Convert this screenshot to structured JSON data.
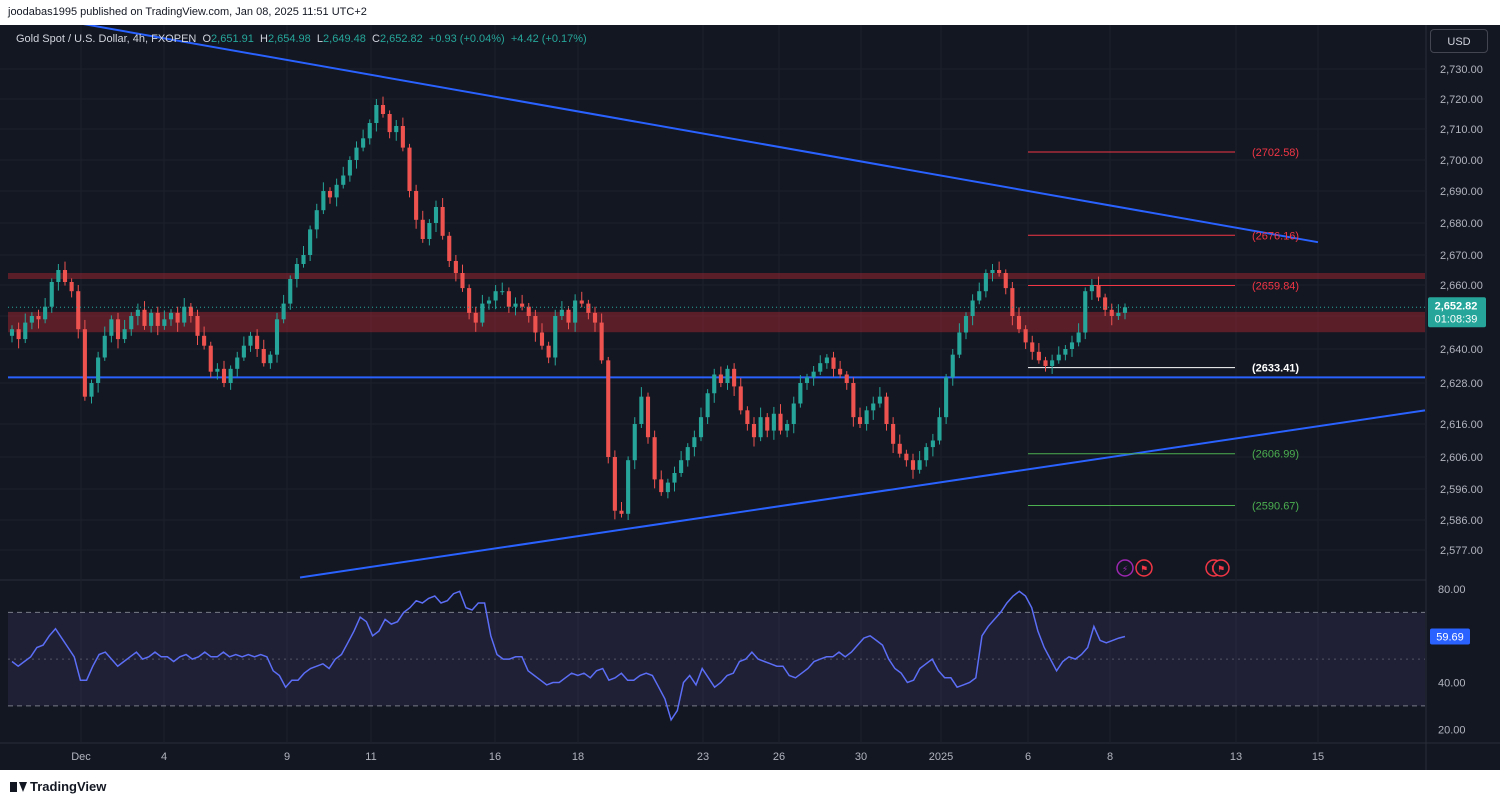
{
  "header": {
    "published": "joodabas1995 published on TradingView.com, Jan 08, 2025 11:51 UTC+2"
  },
  "symbol_line": {
    "name": "Gold Spot / U.S. Dollar, 4h, FXOPEN",
    "o_label": "O",
    "o": "2,651.91",
    "h_label": "H",
    "h": "2,654.98",
    "l_label": "L",
    "l": "2,649.48",
    "c_label": "C",
    "c": "2,652.82",
    "change": "+0.93 (+0.04%)",
    "change2": "+4.42 (+0.17%)"
  },
  "currency_button": "USD",
  "footer": {
    "brand": "TradingView"
  },
  "colors": {
    "up": "#26a69a",
    "down": "#ef5350",
    "background": "#131722",
    "trendline": "#2962ff",
    "zone": "#b22833",
    "rsi": "#5b6ef5",
    "level_red": "#f23645",
    "level_green": "#4caf50"
  },
  "chart_data": [
    {
      "type": "candlestick",
      "title": "Gold Spot / U.S. Dollar, 4h, FXOPEN",
      "last_price": "2,652.82",
      "countdown": "01:08:39",
      "price_axis_ticks": [
        "2,730.00",
        "2,720.00",
        "2,710.00",
        "2,700.00",
        "2,690.00",
        "2,680.00",
        "2,670.00",
        "2,660.00",
        "2,650.00",
        "2,640.00",
        "2,628.00",
        "2,616.00",
        "2,606.00",
        "2,596.00",
        "2,586.00",
        "2,577.00"
      ],
      "time_axis_ticks": [
        "Dec",
        "4",
        "9",
        "11",
        "16",
        "18",
        "23",
        "26",
        "30",
        "2025",
        "6",
        "8",
        "13",
        "15"
      ],
      "close_series": [
        2646,
        2643,
        2648,
        2650,
        2649,
        2653,
        2661,
        2665,
        2661,
        2658,
        2646,
        2624,
        2628,
        2637,
        2644,
        2649,
        2643,
        2646,
        2650,
        2652,
        2647,
        2651,
        2647,
        2649,
        2651,
        2648,
        2653,
        2650,
        2644,
        2641,
        2632,
        2633,
        2628,
        2633,
        2637,
        2641,
        2644,
        2640,
        2635,
        2638,
        2649,
        2654,
        2662,
        2667,
        2670,
        2678,
        2684,
        2690,
        2688,
        2692,
        2695,
        2700,
        2704,
        2707,
        2712,
        2718,
        2715,
        2709,
        2711,
        2704,
        2690,
        2681,
        2675,
        2680,
        2685,
        2676,
        2668,
        2664,
        2659,
        2651,
        2648,
        2654,
        2655,
        2658,
        2658,
        2653,
        2654,
        2653,
        2650,
        2645,
        2641,
        2637,
        2650,
        2652,
        2648,
        2655,
        2654,
        2651,
        2648,
        2636,
        2606,
        2589,
        2588,
        2605,
        2616,
        2624,
        2612,
        2599,
        2595,
        2598,
        2601,
        2605,
        2609,
        2612,
        2618,
        2625,
        2631,
        2628,
        2633,
        2627,
        2620,
        2616,
        2612,
        2618,
        2614,
        2619,
        2614,
        2616,
        2622,
        2628,
        2630,
        2632,
        2635,
        2637,
        2633,
        2631,
        2628,
        2618,
        2616,
        2620,
        2622,
        2624,
        2616,
        2610,
        2607,
        2605,
        2602,
        2605,
        2609,
        2611,
        2618,
        2630,
        2638,
        2645,
        2650,
        2655,
        2658,
        2664,
        2665,
        2664,
        2659,
        2650,
        2646,
        2642,
        2639,
        2636,
        2634,
        2636,
        2638,
        2640,
        2642,
        2645,
        2658,
        2660,
        2656,
        2652,
        2650,
        2651,
        2652.82
      ],
      "horizontal_levels": [
        {
          "value": 2702.58,
          "label": "(2702.58)",
          "color": "red"
        },
        {
          "value": 2676.16,
          "label": "(2676.16)",
          "color": "red"
        },
        {
          "value": 2659.84,
          "label": "(2659.84)",
          "color": "red"
        },
        {
          "value": 2633.41,
          "label": "(2633.41)",
          "color": "white"
        },
        {
          "value": 2606.99,
          "label": "(2606.99)",
          "color": "green"
        },
        {
          "value": 2590.67,
          "label": "(2590.67)",
          "color": "green"
        }
      ],
      "resistance_zones": [
        {
          "low": 2662,
          "high": 2664
        },
        {
          "low": 2646,
          "high": 2651
        }
      ],
      "support_line": 2630,
      "trendlines": [
        {
          "name": "descending",
          "from": 2749,
          "to": 2674
        },
        {
          "name": "ascending",
          "from": 2568,
          "to": 2620
        }
      ]
    },
    {
      "type": "line",
      "title": "",
      "y_ticks": [
        "80.00",
        "40.00",
        "20.00"
      ],
      "band": [
        30,
        70
      ],
      "midline": 50,
      "last_value": "59.69",
      "values": [
        49,
        47,
        49,
        51,
        55,
        56,
        60,
        63,
        59,
        55,
        51,
        41,
        41,
        47,
        52,
        53,
        50,
        47,
        49,
        51,
        53,
        50,
        51,
        53,
        51,
        51,
        49,
        51,
        52,
        50,
        51,
        53,
        51,
        51,
        53,
        51,
        52,
        51,
        52,
        51,
        52,
        51,
        45,
        43,
        38,
        41,
        41,
        44,
        46,
        47,
        48,
        46,
        50,
        52,
        57,
        62,
        68,
        66,
        60,
        62,
        67,
        65,
        66,
        70,
        72,
        75,
        74,
        76,
        77,
        74,
        75,
        78,
        79,
        72,
        71,
        74,
        74,
        60,
        52,
        50,
        50,
        51,
        51,
        45,
        43,
        41,
        39,
        40,
        40,
        42,
        44,
        43,
        44,
        42,
        45,
        46,
        41,
        42,
        44,
        41,
        41,
        43,
        44,
        43,
        38,
        33,
        24,
        28,
        40,
        43,
        39,
        46,
        42,
        38,
        40,
        43,
        44,
        49,
        50,
        53,
        50,
        49,
        48,
        47,
        47,
        43,
        42,
        44,
        46,
        49,
        50,
        51,
        51,
        53,
        51,
        53,
        56,
        59,
        60,
        58,
        56,
        50,
        46,
        44,
        40,
        41,
        46,
        48,
        50,
        45,
        42,
        42,
        38,
        39,
        40,
        42,
        60,
        64,
        67,
        70,
        74,
        77,
        79,
        77,
        72,
        62,
        55,
        50,
        45,
        49,
        51,
        50,
        52,
        55,
        64,
        58,
        57,
        58,
        59,
        59.69
      ]
    }
  ]
}
